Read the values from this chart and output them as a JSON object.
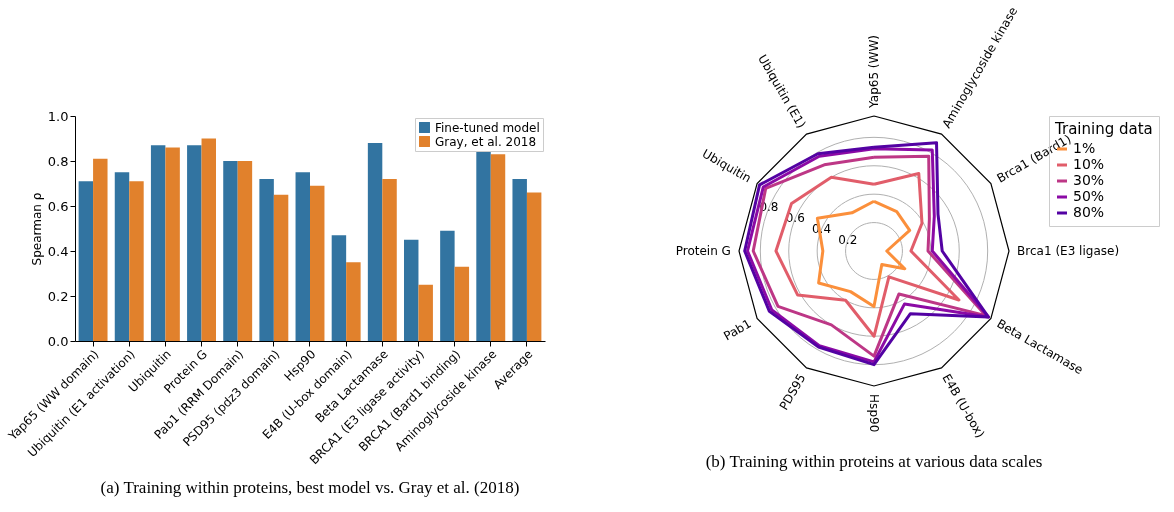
{
  "chart_data": [
    {
      "type": "bar",
      "ylabel": "Spearman ρ",
      "categories": [
        "Yap65 (WW domain)",
        "Ubiquitin (E1 activation)",
        "Ubiquitin",
        "Protein G",
        "Pab1 (RRM Domain)",
        "PSD95 (pdz3 domain)",
        "Hsp90",
        "E4B (U-box domain)",
        "Beta Lactamase",
        "BRCA1 (E3 ligase activity)",
        "BRCA1 (Bard1 binding)",
        "Aminoglycoside kinase",
        "Average"
      ],
      "series": [
        {
          "name": "Fine-tuned model",
          "color": "#3274a1",
          "values": [
            0.71,
            0.75,
            0.87,
            0.87,
            0.8,
            0.72,
            0.75,
            0.47,
            0.88,
            0.45,
            0.49,
            0.84,
            0.72
          ]
        },
        {
          "name": "Gray, et al. 2018",
          "color": "#e1812c",
          "values": [
            0.81,
            0.71,
            0.86,
            0.9,
            0.8,
            0.65,
            0.69,
            0.35,
            0.72,
            0.25,
            0.33,
            0.83,
            0.66
          ]
        }
      ],
      "ylim": [
        0,
        1
      ],
      "yticks": [
        {
          "value": 0,
          "label": "0.0"
        },
        0.2,
        0.4,
        0.6,
        0.8,
        {
          "value": 1,
          "label": "1.0"
        }
      ],
      "legend": "top right",
      "annotations": [
        "(a) Training within proteins, best model vs. Gray et al. (2018)"
      ]
    },
    {
      "type": "radar",
      "categories": [
        "Yap65 (WW)",
        "Aminoglycoside kinase",
        "Brca1 (Bard1)",
        "Brca1 (E3 ligase)",
        "Beta Lactamase",
        "E4B (U-box)",
        "Hsp90",
        "PDS95",
        "Pab1",
        "Protein G",
        "Ubiquitin",
        "Ubiquitin (E1)"
      ],
      "series": [
        {
          "name": "1%",
          "color": "#fb8f3b",
          "values": [
            0.35,
            0.32,
            0.29,
            0.09,
            0.25,
            0.11,
            0.39,
            0.33,
            0.45,
            0.36,
            0.46,
            0.31
          ]
        },
        {
          "name": "10%",
          "color": "#e15d6a",
          "values": [
            0.47,
            0.63,
            0.39,
            0.26,
            0.69,
            0.21,
            0.6,
            0.4,
            0.62,
            0.69,
            0.67,
            0.6
          ]
        },
        {
          "name": "30%",
          "color": "#bd3786",
          "values": [
            0.66,
            0.77,
            0.45,
            0.38,
            0.91,
            0.35,
            0.74,
            0.6,
            0.78,
            0.85,
            0.88,
            0.7
          ]
        },
        {
          "name": "50%",
          "color": "#8b0aa5",
          "values": [
            0.72,
            0.82,
            0.49,
            0.41,
            0.93,
            0.43,
            0.78,
            0.77,
            0.83,
            0.89,
            0.9,
            0.77
          ]
        },
        {
          "name": "80%",
          "color": "#5302a3",
          "values": [
            0.73,
            0.88,
            0.52,
            0.48,
            0.93,
            0.51,
            0.8,
            0.78,
            0.85,
            0.91,
            0.93,
            0.79
          ]
        }
      ],
      "ylim": [
        0,
        0.95
      ],
      "yticks": [
        0.2,
        0.4,
        0.6,
        0.8
      ],
      "grid": true,
      "legend": "right",
      "legend_title": "Training data",
      "annotations": [
        "(b) Training within proteins at various data scales"
      ]
    }
  ]
}
